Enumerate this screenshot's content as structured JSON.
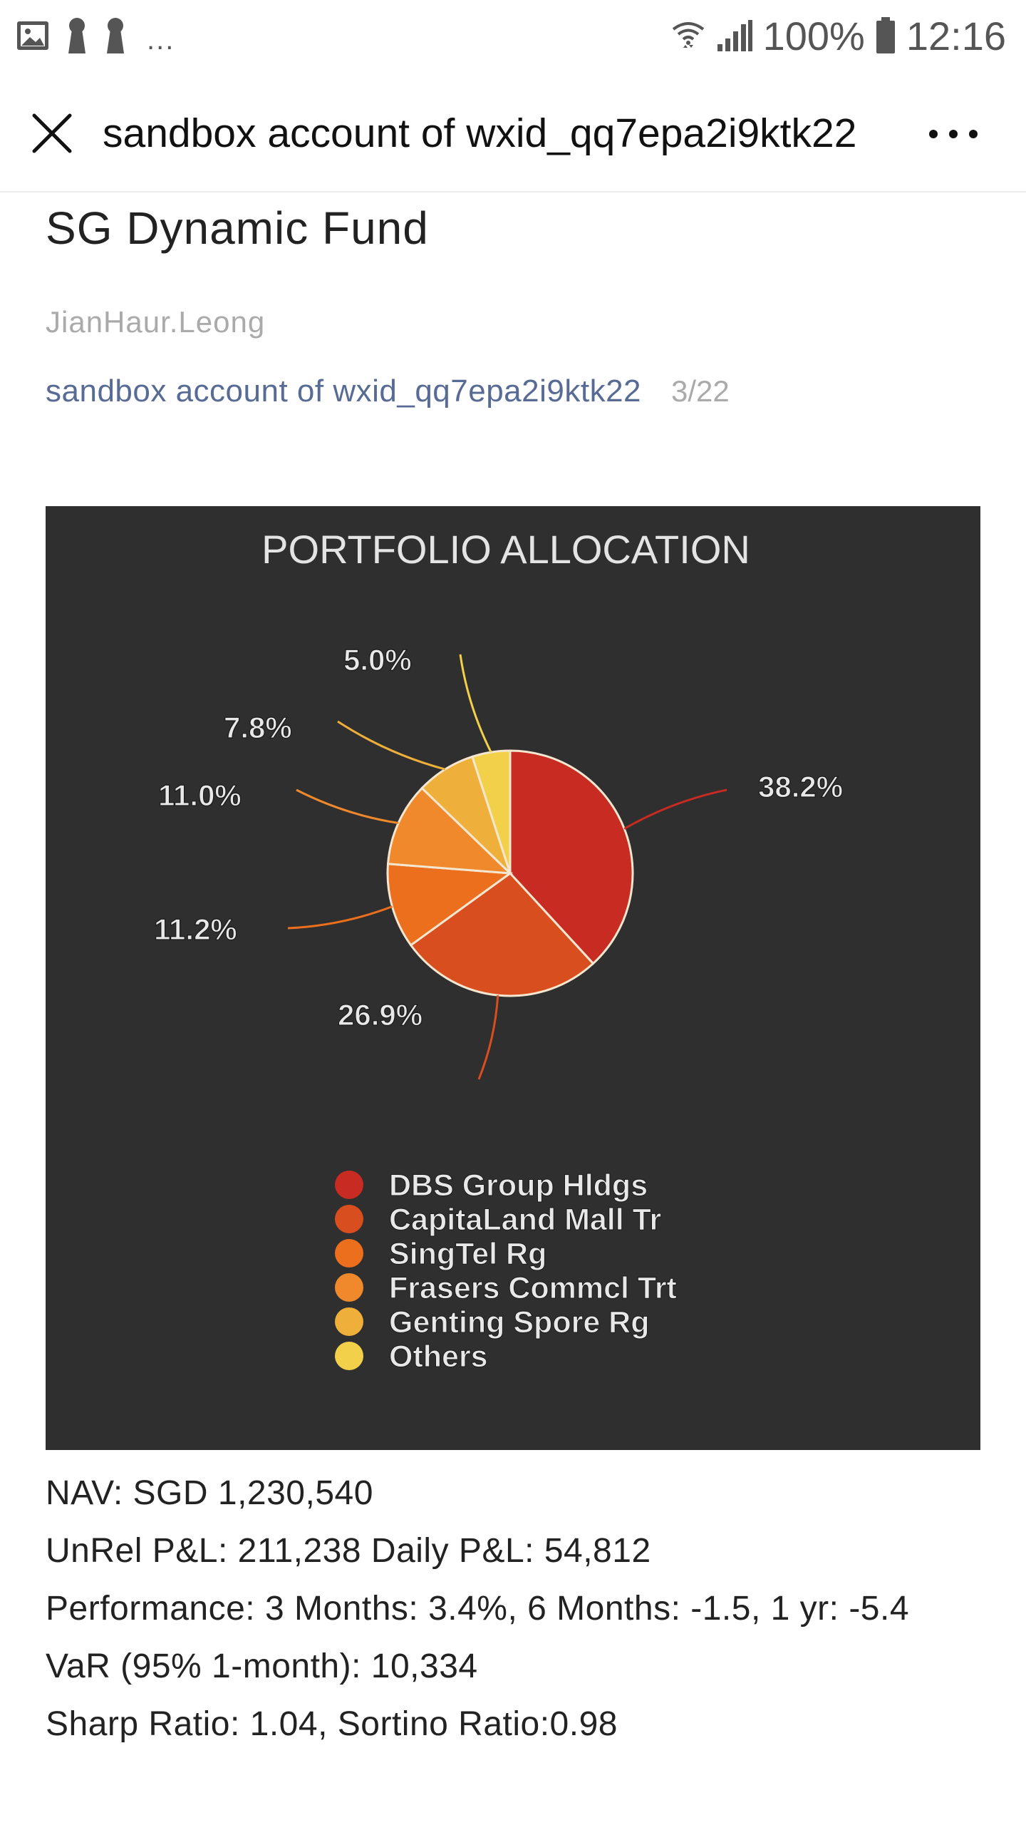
{
  "status_bar": {
    "battery": "100%",
    "time": "12:16",
    "more_notifications": "...",
    "icons": [
      "image-icon",
      "keyhole-icon",
      "keyhole-icon",
      "wifi-icon",
      "signal-icon",
      "battery-icon"
    ]
  },
  "header": {
    "title": "sandbox account of wxid_qq7epa2i9ktk22",
    "close_icon": "close-icon",
    "more_icon": "more-icon"
  },
  "article": {
    "title": "SG Dynamic Fund",
    "author": "JianHaur.Leong",
    "account": "sandbox account of wxid_qq7epa2i9ktk22",
    "date": "3/22"
  },
  "chart_data": {
    "type": "pie",
    "title": "PORTFOLIO ALLOCATION",
    "categories": [
      "DBS Group Hldgs",
      "CapitaLand Mall Tr",
      "SingTel Rg",
      "Frasers Commcl Trt",
      "Genting Spore Rg",
      "Others"
    ],
    "values": [
      38.2,
      26.9,
      11.2,
      11.0,
      7.8,
      5.0
    ],
    "labels": [
      "38.2%",
      "26.9%",
      "11.2%",
      "11.0%",
      "7.8%",
      "5.0%"
    ],
    "colors": [
      "#c72b22",
      "#d94e1f",
      "#ec6f1e",
      "#f0892b",
      "#eeb03a",
      "#f2d04a"
    ],
    "background": "#2f2f30",
    "legend_position": "bottom"
  },
  "body": {
    "nav": "NAV: SGD 1,230,540",
    "pnl": "UnRel P&L: 211,238 Daily P&L: 54,812",
    "performance": "Performance: 3 Months: 3.4%, 6 Months: -1.5, 1 yr: -5.4",
    "var": "VaR (95% 1-month): 10,334",
    "ratios": "Sharp Ratio: 1.04, Sortino Ratio:0.98"
  }
}
